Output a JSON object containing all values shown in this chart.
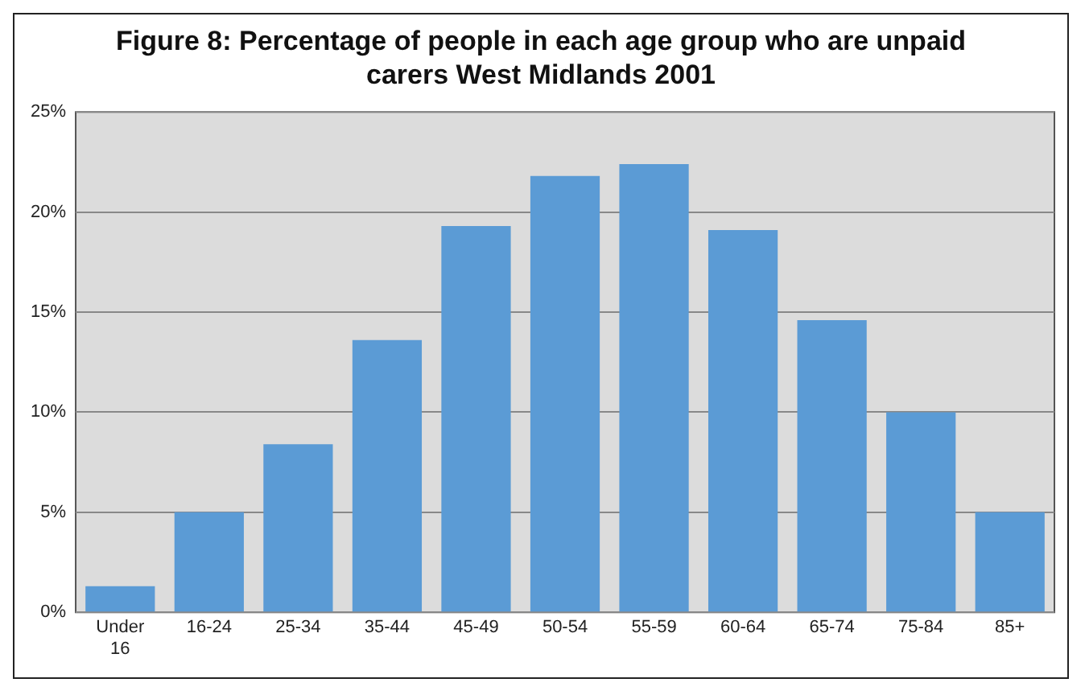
{
  "chart_data": {
    "type": "bar",
    "title": "Figure 8: Percentage of people in each age group who are unpaid carers West Midlands 2001",
    "categories": [
      "Under 16",
      "16-24",
      "25-34",
      "35-44",
      "45-49",
      "50-54",
      "55-59",
      "60-64",
      "65-74",
      "75-84",
      "85+"
    ],
    "values": [
      1.3,
      5.0,
      8.4,
      13.6,
      19.3,
      21.8,
      22.4,
      19.1,
      14.6,
      10.0,
      5.0
    ],
    "color": "#5b9bd5",
    "ylim": [
      0,
      25
    ],
    "yticks": [
      {
        "value": 0,
        "label": "0%"
      },
      {
        "value": 5,
        "label": "5%"
      },
      {
        "value": 10,
        "label": "10%"
      },
      {
        "value": 15,
        "label": "15%"
      },
      {
        "value": 20,
        "label": "20%"
      },
      {
        "value": 25,
        "label": "25%"
      }
    ],
    "grid": "y"
  }
}
